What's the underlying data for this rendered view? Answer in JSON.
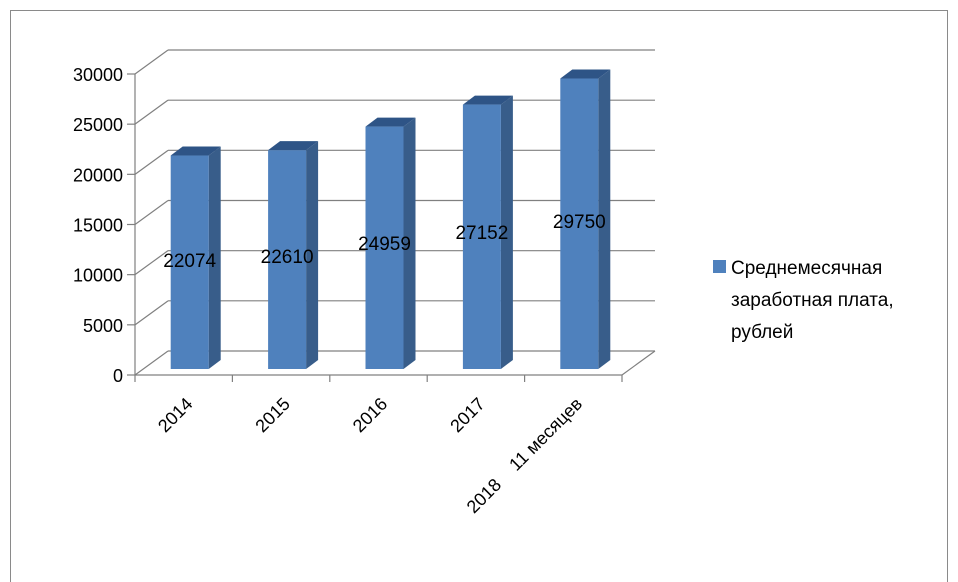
{
  "chart_data": {
    "type": "bar",
    "style": "3d-column",
    "categories": [
      "2014",
      "2015",
      "2016",
      "2017",
      "2018    11 месяцев"
    ],
    "series": [
      {
        "name": "Среднемесячная заработная плата, рублей",
        "values": [
          22074,
          22610,
          24959,
          27152,
          29750
        ]
      }
    ],
    "data_labels": [
      "22074",
      "22610",
      "24959",
      "27152",
      "29750"
    ],
    "y_ticks": [
      "0",
      "5000",
      "10000",
      "15000",
      "20000",
      "25000",
      "30000"
    ],
    "ylim": [
      0,
      30000
    ],
    "grid": true,
    "legend_position": "right",
    "legend_lines": [
      "Среднемесячная",
      "заработная плата,",
      "рублей"
    ],
    "title": "",
    "xlabel": "",
    "ylabel": ""
  },
  "colors": {
    "bar_front": "#4f81bd",
    "bar_side": "#385d8a",
    "bar_top": "#2e5486",
    "grid": "#808080",
    "frame": "#8a8a8a"
  }
}
